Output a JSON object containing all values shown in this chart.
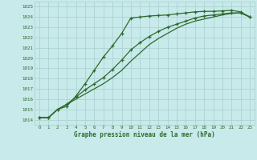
{
  "title": "Graphe pression niveau de la mer (hPa)",
  "background_color": "#c8eaea",
  "grid_color": "#a8cece",
  "line_color": "#2d6a2d",
  "xlim": [
    -0.5,
    23.5
  ],
  "ylim": [
    1013.5,
    1025.5
  ],
  "yticks": [
    1014,
    1015,
    1016,
    1017,
    1018,
    1019,
    1020,
    1021,
    1022,
    1023,
    1024,
    1025
  ],
  "xticks": [
    0,
    1,
    2,
    3,
    4,
    5,
    6,
    7,
    8,
    9,
    10,
    11,
    12,
    13,
    14,
    15,
    16,
    17,
    18,
    19,
    20,
    21,
    22,
    23
  ],
  "line1_x": [
    0,
    1,
    2,
    3,
    4,
    5,
    6,
    7,
    8,
    9,
    10,
    11,
    12,
    13,
    14,
    15,
    16,
    17,
    18,
    19,
    20,
    21,
    22,
    23
  ],
  "line1_y": [
    1014.2,
    1014.2,
    1015.0,
    1015.3,
    1016.3,
    1017.5,
    1018.8,
    1020.1,
    1021.2,
    1022.4,
    1023.9,
    1024.0,
    1024.1,
    1024.15,
    1024.2,
    1024.3,
    1024.4,
    1024.5,
    1024.55,
    1024.55,
    1024.6,
    1024.65,
    1024.5,
    1024.0
  ],
  "line2_x": [
    0,
    1,
    2,
    3,
    4,
    5,
    6,
    7,
    8,
    9,
    10,
    11,
    12,
    13,
    14,
    15,
    16,
    17,
    18,
    19,
    20,
    21,
    22,
    23
  ],
  "line2_y": [
    1014.2,
    1014.2,
    1015.0,
    1015.5,
    1016.2,
    1016.9,
    1017.5,
    1018.1,
    1018.9,
    1019.8,
    1020.8,
    1021.5,
    1022.1,
    1022.6,
    1023.0,
    1023.3,
    1023.6,
    1023.9,
    1024.1,
    1024.2,
    1024.3,
    1024.4,
    1024.4,
    1024.0
  ],
  "line3_x": [
    0,
    1,
    2,
    3,
    4,
    5,
    6,
    7,
    8,
    9,
    10,
    11,
    12,
    13,
    14,
    15,
    16,
    17,
    18,
    19,
    20,
    21,
    22,
    23
  ],
  "line3_y": [
    1014.2,
    1014.2,
    1015.0,
    1015.5,
    1016.0,
    1016.5,
    1017.0,
    1017.5,
    1018.1,
    1018.8,
    1019.7,
    1020.5,
    1021.3,
    1021.9,
    1022.4,
    1022.9,
    1023.3,
    1023.6,
    1023.8,
    1024.0,
    1024.2,
    1024.35,
    1024.4,
    1024.0
  ]
}
